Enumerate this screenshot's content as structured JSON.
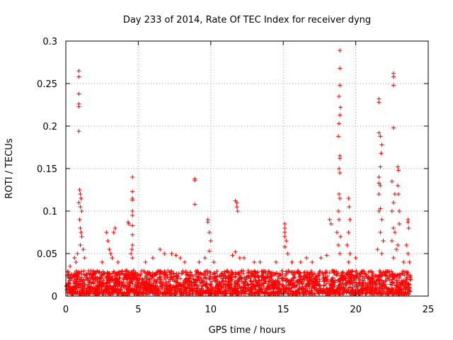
{
  "chart_data": {
    "type": "scatter",
    "title": "Day 233 of 2014, Rate Of TEC Index for receiver dyng",
    "xlabel": "GPS time / hours",
    "ylabel": "ROTI / TECUs",
    "xlim": [
      0,
      25
    ],
    "ylim": [
      0,
      0.3
    ],
    "x_ticks": [
      0,
      5,
      10,
      15,
      20,
      25
    ],
    "x_tick_labels": [
      "0",
      "5",
      "10",
      "15",
      "20",
      "25"
    ],
    "y_ticks": [
      0,
      0.05,
      0.1,
      0.15,
      0.2,
      0.25,
      0.3
    ],
    "y_tick_labels": [
      "0",
      "0.05",
      "0.1",
      "0.15",
      "0.2",
      "0.25",
      "0.3"
    ],
    "grid": true,
    "marker": "+",
    "marker_color": "#ff0000",
    "series": [
      {
        "name": "ROTI",
        "baseline_band": {
          "x_range": [
            0,
            23.8
          ],
          "y_range": [
            0.002,
            0.03
          ]
        },
        "points": [
          [
            0.9,
            0.265
          ],
          [
            0.9,
            0.258
          ],
          [
            0.9,
            0.238
          ],
          [
            0.9,
            0.226
          ],
          [
            0.9,
            0.223
          ],
          [
            0.9,
            0.194
          ],
          [
            0.95,
            0.125
          ],
          [
            1.0,
            0.12
          ],
          [
            1.05,
            0.115
          ],
          [
            0.9,
            0.11
          ],
          [
            1.0,
            0.105
          ],
          [
            1.1,
            0.1
          ],
          [
            0.95,
            0.09
          ],
          [
            1.0,
            0.08
          ],
          [
            1.05,
            0.075
          ],
          [
            1.1,
            0.07
          ],
          [
            1.0,
            0.06
          ],
          [
            0.8,
            0.05
          ],
          [
            0.6,
            0.045
          ],
          [
            0.3,
            0.035
          ],
          [
            0.7,
            0.04
          ],
          [
            1.2,
            0.055
          ],
          [
            1.3,
            0.045
          ],
          [
            2.8,
            0.075
          ],
          [
            2.9,
            0.065
          ],
          [
            3.0,
            0.055
          ],
          [
            3.1,
            0.05
          ],
          [
            3.3,
            0.075
          ],
          [
            3.4,
            0.08
          ],
          [
            3.2,
            0.045
          ],
          [
            3.6,
            0.04
          ],
          [
            2.5,
            0.04
          ],
          [
            4.3,
            0.087
          ],
          [
            4.35,
            0.085
          ],
          [
            4.6,
            0.14
          ],
          [
            4.6,
            0.123
          ],
          [
            4.6,
            0.115
          ],
          [
            4.6,
            0.113
          ],
          [
            4.6,
            0.1
          ],
          [
            4.6,
            0.095
          ],
          [
            4.6,
            0.083
          ],
          [
            4.6,
            0.072
          ],
          [
            4.6,
            0.06
          ],
          [
            4.55,
            0.055
          ],
          [
            4.5,
            0.05
          ],
          [
            4.6,
            0.045
          ],
          [
            5.5,
            0.04
          ],
          [
            6.0,
            0.045
          ],
          [
            6.5,
            0.055
          ],
          [
            6.8,
            0.05
          ],
          [
            7.3,
            0.05
          ],
          [
            7.6,
            0.048
          ],
          [
            7.9,
            0.045
          ],
          [
            8.2,
            0.04
          ],
          [
            8.9,
            0.138
          ],
          [
            8.9,
            0.136
          ],
          [
            8.9,
            0.108
          ],
          [
            9.2,
            0.04
          ],
          [
            9.6,
            0.045
          ],
          [
            9.8,
            0.09
          ],
          [
            9.8,
            0.087
          ],
          [
            9.9,
            0.075
          ],
          [
            10.0,
            0.065
          ],
          [
            9.9,
            0.053
          ],
          [
            10.2,
            0.04
          ],
          [
            11.7,
            0.112
          ],
          [
            11.8,
            0.11
          ],
          [
            11.8,
            0.105
          ],
          [
            11.85,
            0.1
          ],
          [
            11.7,
            0.052
          ],
          [
            11.5,
            0.048
          ],
          [
            12.0,
            0.045
          ],
          [
            12.3,
            0.045
          ],
          [
            13.0,
            0.04
          ],
          [
            13.4,
            0.04
          ],
          [
            15.1,
            0.085
          ],
          [
            15.1,
            0.08
          ],
          [
            15.1,
            0.075
          ],
          [
            15.1,
            0.07
          ],
          [
            15.2,
            0.065
          ],
          [
            15.1,
            0.058
          ],
          [
            15.3,
            0.05
          ],
          [
            14.5,
            0.04
          ],
          [
            15.6,
            0.04
          ],
          [
            16.2,
            0.04
          ],
          [
            16.6,
            0.045
          ],
          [
            17.0,
            0.04
          ],
          [
            17.6,
            0.045
          ],
          [
            18.0,
            0.048
          ],
          [
            18.2,
            0.09
          ],
          [
            18.3,
            0.085
          ],
          [
            18.9,
            0.289
          ],
          [
            18.9,
            0.268
          ],
          [
            18.9,
            0.248
          ],
          [
            18.85,
            0.235
          ],
          [
            18.95,
            0.222
          ],
          [
            18.9,
            0.213
          ],
          [
            18.85,
            0.203
          ],
          [
            18.8,
            0.188
          ],
          [
            18.9,
            0.165
          ],
          [
            18.9,
            0.162
          ],
          [
            18.85,
            0.15
          ],
          [
            18.9,
            0.145
          ],
          [
            18.85,
            0.12
          ],
          [
            18.9,
            0.115
          ],
          [
            18.8,
            0.1
          ],
          [
            18.85,
            0.09
          ],
          [
            18.7,
            0.075
          ],
          [
            18.95,
            0.07
          ],
          [
            18.8,
            0.06
          ],
          [
            18.9,
            0.05
          ],
          [
            19.5,
            0.115
          ],
          [
            19.55,
            0.105
          ],
          [
            19.6,
            0.09
          ],
          [
            19.5,
            0.075
          ],
          [
            19.4,
            0.06
          ],
          [
            19.6,
            0.05
          ],
          [
            19.5,
            0.04
          ],
          [
            20.0,
            0.045
          ],
          [
            21.6,
            0.232
          ],
          [
            21.6,
            0.228
          ],
          [
            21.6,
            0.192
          ],
          [
            21.7,
            0.188
          ],
          [
            21.8,
            0.178
          ],
          [
            21.75,
            0.168
          ],
          [
            21.7,
            0.152
          ],
          [
            21.6,
            0.14
          ],
          [
            21.6,
            0.133
          ],
          [
            21.7,
            0.13
          ],
          [
            21.6,
            0.12
          ],
          [
            21.7,
            0.103
          ],
          [
            21.6,
            0.1
          ],
          [
            21.8,
            0.09
          ],
          [
            21.7,
            0.075
          ],
          [
            21.9,
            0.065
          ],
          [
            21.5,
            0.055
          ],
          [
            21.8,
            0.05
          ],
          [
            22.6,
            0.262
          ],
          [
            22.6,
            0.258
          ],
          [
            22.6,
            0.248
          ],
          [
            22.6,
            0.198
          ],
          [
            22.5,
            0.135
          ],
          [
            22.7,
            0.12
          ],
          [
            22.6,
            0.11
          ],
          [
            22.5,
            0.1
          ],
          [
            22.6,
            0.08
          ],
          [
            22.7,
            0.075
          ],
          [
            22.5,
            0.065
          ],
          [
            22.8,
            0.055
          ],
          [
            22.6,
            0.045
          ],
          [
            22.9,
            0.152
          ],
          [
            22.95,
            0.148
          ],
          [
            22.9,
            0.13
          ],
          [
            22.95,
            0.12
          ],
          [
            23.0,
            0.1
          ],
          [
            23.0,
            0.085
          ],
          [
            22.9,
            0.06
          ],
          [
            23.6,
            0.09
          ],
          [
            23.6,
            0.087
          ],
          [
            23.65,
            0.08
          ],
          [
            23.5,
            0.06
          ],
          [
            23.6,
            0.05
          ],
          [
            23.3,
            0.04
          ],
          [
            23.7,
            0.04
          ]
        ]
      }
    ]
  }
}
